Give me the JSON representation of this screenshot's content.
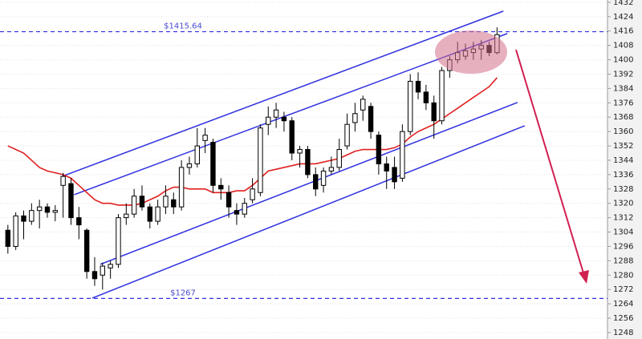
{
  "chart_data": {
    "type": "candlestick",
    "xlim": [
      -1,
      76
    ],
    "ylim": [
      1244.4,
      1433.3
    ],
    "yticks": [
      1248,
      1256,
      1264,
      1272,
      1280,
      1288,
      1296,
      1304,
      1312,
      1320,
      1328,
      1336,
      1344,
      1352,
      1360,
      1368,
      1376,
      1384,
      1392,
      1400,
      1408,
      1416,
      1424,
      1432
    ],
    "grid": true,
    "up_color": "#ffffff",
    "down_color": "#000000",
    "open": [
      1305,
      1296,
      1313,
      1310,
      1316,
      1318,
      1315,
      1330,
      1331,
      1312,
      1305,
      1282,
      1280,
      1284,
      1286,
      1312,
      1314,
      1324,
      1318,
      1310,
      1318,
      1322,
      1318,
      1340,
      1342,
      1355,
      1354,
      1330,
      1326,
      1316,
      1314,
      1322,
      1326,
      1364,
      1368,
      1368,
      1366,
      1348,
      1350,
      1336,
      1330,
      1338,
      1340,
      1352,
      1365,
      1372,
      1374,
      1358,
      1342,
      1340,
      1334,
      1360,
      1388,
      1382,
      1376,
      1366,
      1394,
      1400,
      1402,
      1404,
      1406,
      1408,
      1404
    ],
    "high": [
      1308,
      1315,
      1316,
      1320,
      1322,
      1320,
      1319,
      1337,
      1334,
      1318,
      1306,
      1290,
      1287,
      1288,
      1314,
      1320,
      1328,
      1330,
      1320,
      1322,
      1330,
      1326,
      1344,
      1346,
      1362,
      1362,
      1356,
      1334,
      1330,
      1320,
      1323,
      1334,
      1364,
      1374,
      1376,
      1371,
      1368,
      1352,
      1352,
      1340,
      1340,
      1346,
      1356,
      1370,
      1376,
      1380,
      1376,
      1360,
      1346,
      1346,
      1364,
      1392,
      1393,
      1386,
      1380,
      1396,
      1402,
      1410,
      1409,
      1410,
      1411,
      1410,
      1418
    ],
    "low": [
      1292,
      1294,
      1300,
      1308,
      1306,
      1312,
      1310,
      1312,
      1308,
      1300,
      1278,
      1274,
      1272,
      1278,
      1284,
      1308,
      1312,
      1316,
      1306,
      1308,
      1314,
      1314,
      1316,
      1336,
      1340,
      1348,
      1326,
      1322,
      1312,
      1308,
      1312,
      1320,
      1324,
      1358,
      1362,
      1360,
      1344,
      1340,
      1334,
      1324,
      1326,
      1336,
      1338,
      1350,
      1360,
      1366,
      1356,
      1336,
      1328,
      1328,
      1332,
      1358,
      1378,
      1372,
      1356,
      1364,
      1390,
      1398,
      1400,
      1400,
      1400,
      1402,
      1403
    ],
    "close": [
      1296,
      1313,
      1310,
      1316,
      1318,
      1315,
      1316,
      1335,
      1312,
      1308,
      1282,
      1278,
      1285,
      1286,
      1312,
      1314,
      1324,
      1318,
      1310,
      1318,
      1324,
      1318,
      1340,
      1342,
      1352,
      1358,
      1330,
      1328,
      1318,
      1314,
      1320,
      1328,
      1362,
      1368,
      1372,
      1366,
      1348,
      1350,
      1336,
      1328,
      1338,
      1340,
      1350,
      1364,
      1370,
      1378,
      1360,
      1342,
      1338,
      1332,
      1360,
      1388,
      1382,
      1376,
      1366,
      1394,
      1400,
      1404,
      1405,
      1406,
      1408,
      1404,
      1414
    ],
    "moving_average": {
      "color": "#e02020",
      "values": [
        1352,
        1350,
        1348,
        1344,
        1340,
        1338,
        1337,
        1336,
        1334,
        1330,
        1326,
        1322,
        1320,
        1320,
        1319,
        1319,
        1319,
        1320,
        1322,
        1324,
        1327,
        1329,
        1329,
        1328,
        1328,
        1328,
        1326,
        1326,
        1326,
        1327,
        1327,
        1330,
        1334,
        1338,
        1339,
        1340,
        1341,
        1342,
        1342,
        1342,
        1343,
        1344,
        1345,
        1347,
        1349,
        1350,
        1350,
        1350,
        1350,
        1351,
        1353,
        1357,
        1360,
        1362,
        1364,
        1367,
        1370,
        1373,
        1376,
        1379,
        1382,
        1385,
        1390
      ]
    },
    "trendlines": {
      "color": "#3030e0",
      "lines": [
        {
          "x": [
            6.9,
            62.8
          ],
          "y": [
            1335.1,
            1427.1
          ]
        },
        {
          "x": [
            8.4,
            63.3
          ],
          "y": [
            1324.8,
            1414.6
          ]
        },
        {
          "x": [
            11.7,
            64.6
          ],
          "y": [
            1286.0,
            1376.2
          ]
        },
        {
          "x": [
            10.7,
            65.5
          ],
          "y": [
            1267.2,
            1363.2
          ]
        }
      ]
    },
    "hlines": {
      "color": "#3030e0",
      "lines": [
        {
          "value": 1415.64,
          "label": "$1415.64"
        },
        {
          "value": 1267,
          "label": "$1267"
        }
      ]
    }
  }
}
